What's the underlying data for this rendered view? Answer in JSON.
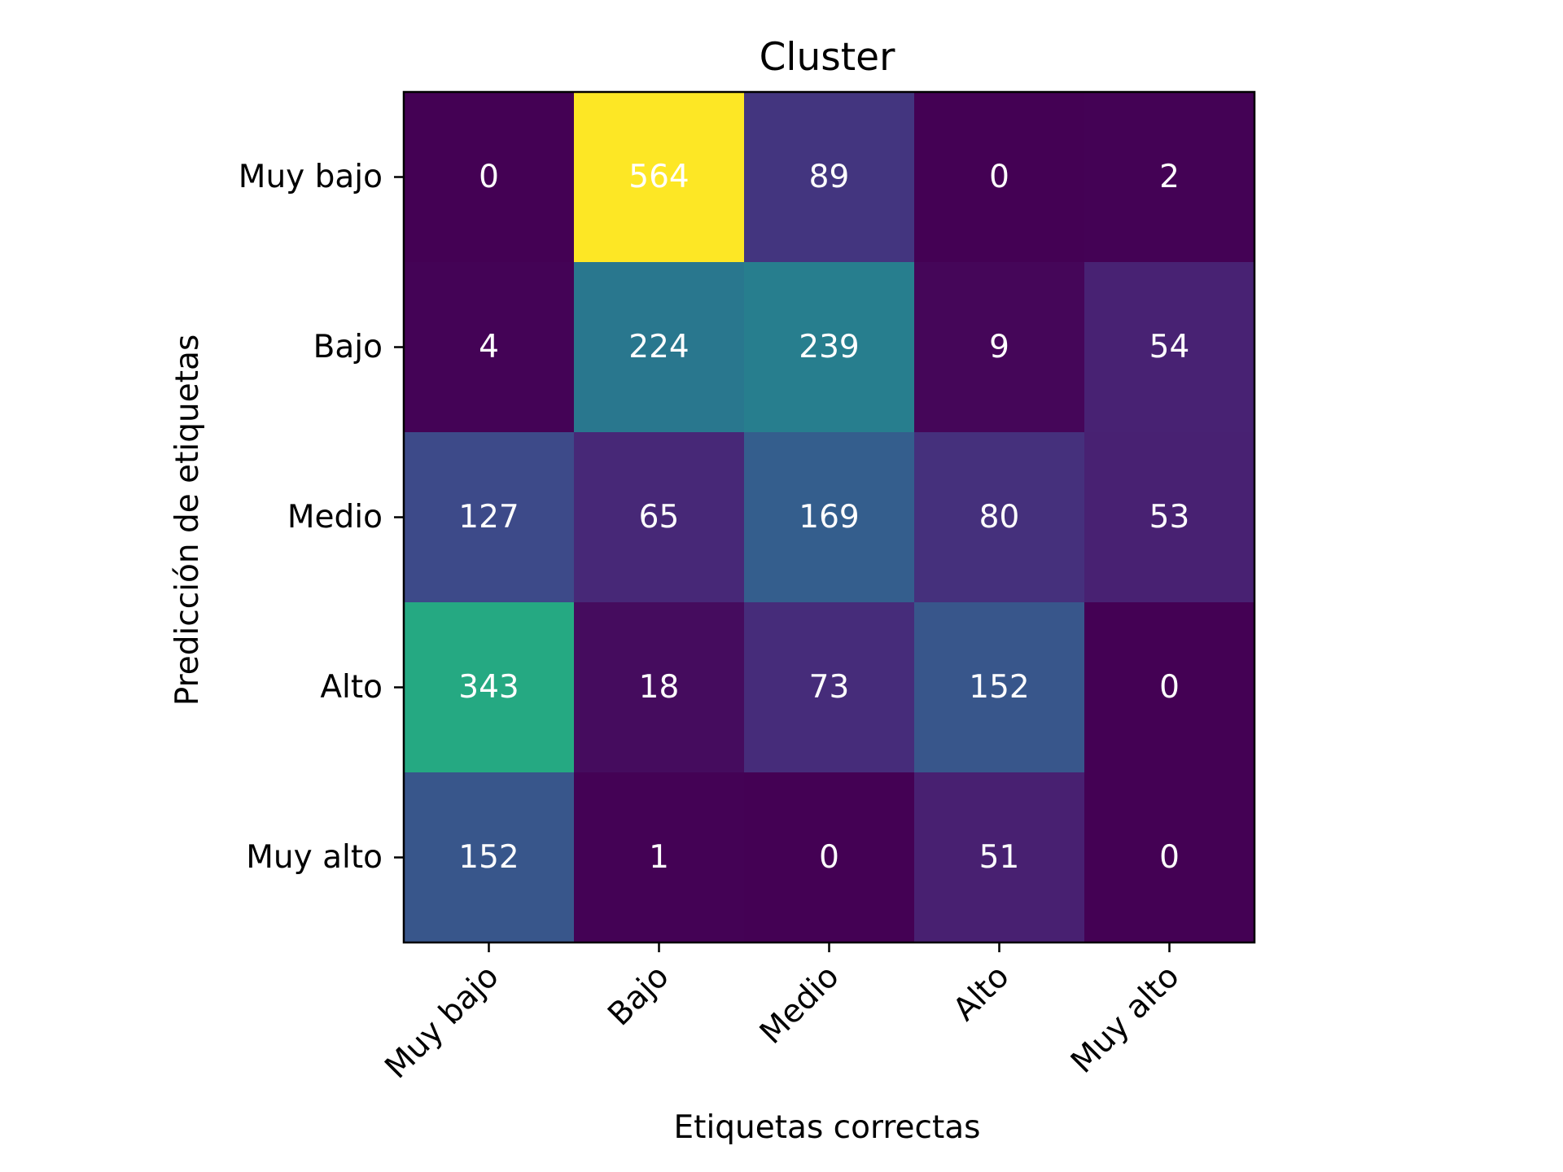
{
  "chart_data": {
    "type": "heatmap",
    "title": "Cluster",
    "xlabel": "Etiquetas correctas",
    "ylabel": "Predicción de etiquetas",
    "x_categories": [
      "Muy bajo",
      "Bajo",
      "Medio",
      "Alto",
      "Muy alto"
    ],
    "y_categories": [
      "Muy bajo",
      "Bajo",
      "Medio",
      "Alto",
      "Muy alto"
    ],
    "values": [
      [
        0,
        564,
        89,
        0,
        2
      ],
      [
        4,
        224,
        239,
        9,
        54
      ],
      [
        127,
        65,
        169,
        80,
        53
      ],
      [
        343,
        18,
        73,
        152,
        0
      ],
      [
        152,
        1,
        0,
        51,
        0
      ]
    ],
    "colormap": "viridis",
    "vmin": 0,
    "vmax": 564,
    "grid": false,
    "legend": "none"
  }
}
